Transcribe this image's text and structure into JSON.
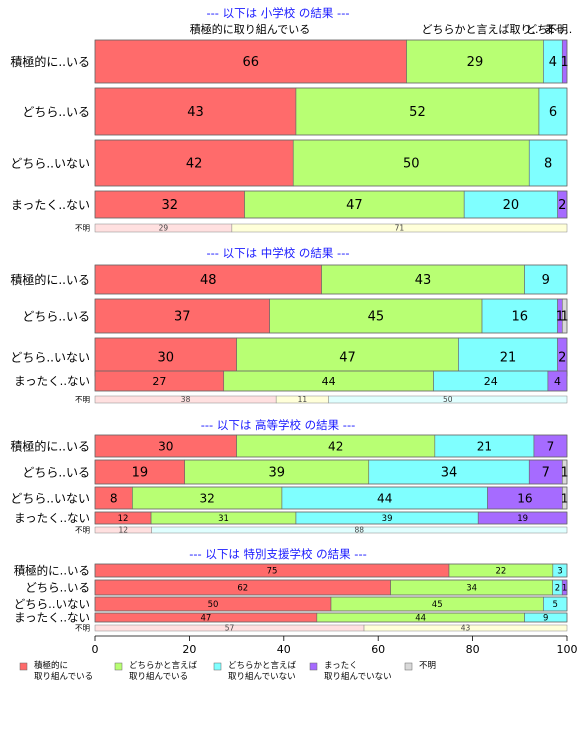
{
  "top_labels": [
    "積極的に取り組んでいる",
    "どちらかと言えば取り..",
    "どち..",
    "まっ..",
    "不明"
  ],
  "chart_data": {
    "type": "bar",
    "orientation": "horizontal",
    "stacked": true,
    "xlim": [
      0,
      100
    ],
    "x_ticks": [
      "0",
      "20",
      "40",
      "60",
      "80",
      "100"
    ],
    "categories_legend": [
      "積極的に\n取り組んでいる",
      "どちらかと言えば\n取り組んでいる",
      "どちらかと言えば\n取り組んでいない",
      "まったく\n取り組んでいない",
      "不明"
    ],
    "colors": [
      "#ff6b6b",
      "#b8ff73",
      "#7fffff",
      "#a66bff",
      "#d9d9d9"
    ],
    "legend_placement": "bottom",
    "panels": [
      {
        "title": "--- 以下は 小学校 の結果 ---",
        "rows": [
          {
            "label": "積極的に..いる",
            "values": [
              66,
              29,
              4,
              1,
              0
            ]
          },
          {
            "label": "どちら..いる",
            "values": [
              43,
              52,
              6,
              0,
              0
            ]
          },
          {
            "label": "どちら..いない",
            "values": [
              42,
              50,
              8,
              0,
              0
            ]
          },
          {
            "label": "まったく..ない",
            "values": [
              32,
              47,
              20,
              2,
              0
            ]
          }
        ],
        "unknown": {
          "label": "不明",
          "values": [
            29,
            71,
            0,
            0,
            0
          ]
        }
      },
      {
        "title": "--- 以下は 中学校 の結果 ---",
        "rows": [
          {
            "label": "積極的に..いる",
            "values": [
              48,
              43,
              9,
              0,
              0
            ]
          },
          {
            "label": "どちら..いる",
            "values": [
              37,
              45,
              16,
              1,
              1
            ]
          },
          {
            "label": "どちら..いない",
            "values": [
              30,
              47,
              21,
              2,
              0
            ]
          },
          {
            "label": "まったく..ない",
            "values": [
              27,
              44,
              24,
              4,
              0
            ]
          }
        ],
        "unknown": {
          "label": "不明",
          "values": [
            38,
            11,
            50,
            0,
            0
          ]
        }
      },
      {
        "title": "--- 以下は 高等学校 の結果 ---",
        "rows": [
          {
            "label": "積極的に..いる",
            "values": [
              30,
              42,
              21,
              7,
              0
            ]
          },
          {
            "label": "どちら..いる",
            "values": [
              19,
              39,
              34,
              7,
              1
            ]
          },
          {
            "label": "どちら..いない",
            "values": [
              8,
              32,
              44,
              16,
              1
            ]
          },
          {
            "label": "まったく..ない",
            "values": [
              12,
              31,
              39,
              19,
              0
            ]
          }
        ],
        "unknown": {
          "label": "不明",
          "values": [
            12,
            0,
            88,
            0,
            0
          ]
        }
      },
      {
        "title": "--- 以下は 特別支援学校 の結果 ---",
        "rows": [
          {
            "label": "積極的に..いる",
            "values": [
              75,
              22,
              3,
              0,
              0
            ]
          },
          {
            "label": "どちら..いる",
            "values": [
              62,
              34,
              2,
              1,
              0
            ]
          },
          {
            "label": "どちら..いない",
            "values": [
              50,
              45,
              5,
              0,
              0
            ]
          },
          {
            "label": "まったく..ない",
            "values": [
              47,
              44,
              9,
              0,
              0
            ]
          }
        ],
        "unknown": {
          "label": "不明",
          "values": [
            57,
            43,
            0,
            0,
            0
          ]
        }
      }
    ]
  }
}
